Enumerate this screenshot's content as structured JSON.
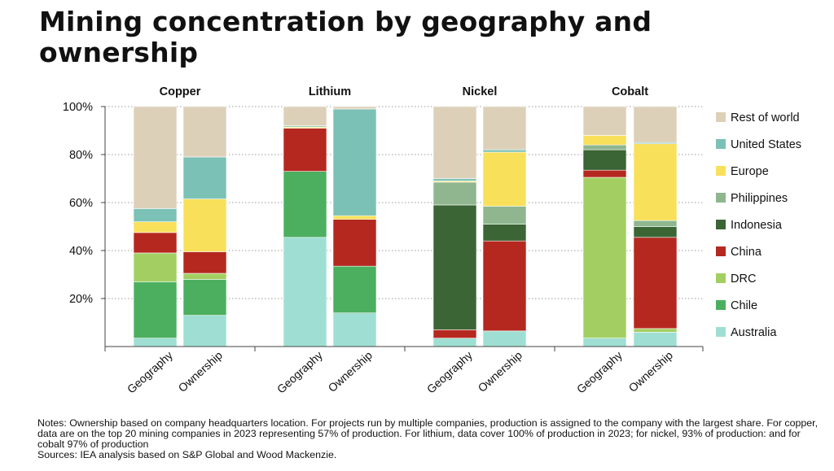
{
  "title": "Mining concentration by geography and ownership",
  "notes": {
    "line1": "Notes: Ownership based on company headquarters location. For projects run by multiple companies, production is assigned to the company with the largest share. For copper, data are on the top 20 mining companies in 2023 representing 57% of production. For lithium, data cover 100% of production in 2023; for nickel, 93% of production: and for cobalt 97% of production",
    "line2": "Sources: IEA analysis based on S&P Global and Wood Mackenzie."
  },
  "colors": {
    "Australia": "#9fdfd3",
    "Chile": "#4caf5f",
    "DRC": "#a3cf62",
    "China": "#b52820",
    "Indonesia": "#3b6535",
    "Philippines": "#8fb68f",
    "Europe": "#f9e05a",
    "United States": "#7cc1b6",
    "Rest of world": "#ddd0b9"
  },
  "chart_data": {
    "type": "bar",
    "stacked": true,
    "percent": true,
    "groups": [
      "Copper",
      "Lithium",
      "Nickel",
      "Cobalt"
    ],
    "bar_labels": [
      "Geography",
      "Ownership"
    ],
    "y_ticks": [
      "100%",
      "80%",
      "60%",
      "40%",
      "20%"
    ],
    "ylim": [
      0,
      100
    ],
    "legend_position": "right",
    "legend": [
      "Rest of world",
      "United States",
      "Europe",
      "Philippines",
      "Indonesia",
      "China",
      "DRC",
      "Chile",
      "Australia"
    ],
    "stack_order": [
      "Australia",
      "Chile",
      "DRC",
      "China",
      "Indonesia",
      "Philippines",
      "Europe",
      "United States",
      "Rest of world"
    ],
    "bars": [
      {
        "group": "Copper",
        "label": "Geography",
        "values": {
          "Australia": 3.5,
          "Chile": 23.5,
          "DRC": 12,
          "China": 8.5,
          "Indonesia": 0,
          "Philippines": 0,
          "Europe": 4.5,
          "United States": 5.5,
          "Rest of world": 42.5
        }
      },
      {
        "group": "Copper",
        "label": "Ownership",
        "values": {
          "Australia": 13,
          "Chile": 15,
          "DRC": 2.5,
          "China": 9,
          "Indonesia": 0,
          "Philippines": 0,
          "Europe": 22,
          "United States": 17.5,
          "Rest of world": 21
        }
      },
      {
        "group": "Lithium",
        "label": "Geography",
        "values": {
          "Australia": 45.5,
          "Chile": 27.5,
          "DRC": 0,
          "China": 18,
          "Indonesia": 0,
          "Philippines": 0,
          "Europe": 0.5,
          "United States": 0.5,
          "Rest of world": 8
        }
      },
      {
        "group": "Lithium",
        "label": "Ownership",
        "values": {
          "Australia": 14,
          "Chile": 19.5,
          "DRC": 0,
          "China": 19.5,
          "Indonesia": 0,
          "Philippines": 0,
          "Europe": 1.5,
          "United States": 44.5,
          "Rest of world": 1
        }
      },
      {
        "group": "Nickel",
        "label": "Geography",
        "values": {
          "Australia": 3.5,
          "Chile": 0,
          "DRC": 0,
          "China": 3.5,
          "Indonesia": 52,
          "Philippines": 9.5,
          "Europe": 0.5,
          "United States": 1,
          "Rest of world": 30
        }
      },
      {
        "group": "Nickel",
        "label": "Ownership",
        "values": {
          "Australia": 6.5,
          "Chile": 0,
          "DRC": 0,
          "China": 37.5,
          "Indonesia": 7,
          "Philippines": 7.5,
          "Europe": 22.5,
          "United States": 1,
          "Rest of world": 18
        }
      },
      {
        "group": "Cobalt",
        "label": "Geography",
        "values": {
          "Australia": 3.5,
          "Chile": 0,
          "DRC": 67,
          "China": 3,
          "Indonesia": 8.5,
          "Philippines": 2,
          "Europe": 4,
          "United States": 0,
          "Rest of world": 12
        }
      },
      {
        "group": "Cobalt",
        "label": "Ownership",
        "values": {
          "Australia": 6,
          "Chile": 0,
          "DRC": 1.5,
          "China": 38,
          "Indonesia": 4.5,
          "Philippines": 2.5,
          "Europe": 32,
          "United States": 0.5,
          "Rest of world": 15
        }
      }
    ]
  }
}
